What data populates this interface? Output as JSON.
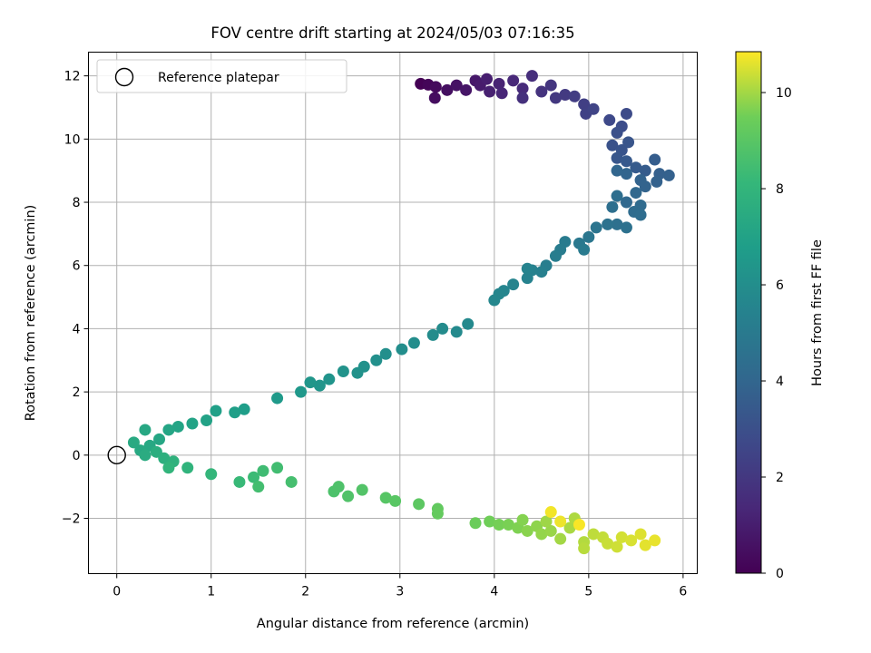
{
  "chart_data": {
    "type": "scatter",
    "title": "FOV centre drift starting at 2024/05/03 07:16:35",
    "xlabel": "Angular distance from reference (arcmin)",
    "ylabel": "Rotation from reference (arcmin)",
    "xlim": [
      -0.3,
      6.15
    ],
    "ylim": [
      -3.75,
      12.75
    ],
    "xticks": [
      0,
      1,
      2,
      3,
      4,
      5,
      6
    ],
    "yticks": [
      -2,
      0,
      2,
      4,
      6,
      8,
      10,
      12
    ],
    "xtick_labels": [
      "0",
      "1",
      "2",
      "3",
      "4",
      "5",
      "6"
    ],
    "ytick_labels": [
      "−2",
      "0",
      "2",
      "4",
      "6",
      "8",
      "10",
      "12"
    ],
    "grid": true,
    "legend": {
      "placement": "top-left",
      "entries": [
        "Reference platepar"
      ]
    },
    "reference_point": {
      "x": 0,
      "y": 0,
      "label": "Reference platepar"
    },
    "colorbar": {
      "label": "Hours from first FF file",
      "range": [
        0,
        10.85
      ],
      "ticks": [
        0,
        2,
        4,
        6,
        8,
        10
      ],
      "tick_labels": [
        "0",
        "2",
        "4",
        "6",
        "8",
        "10"
      ],
      "colormap": "viridis"
    },
    "points": [
      {
        "x": 3.22,
        "y": 11.75,
        "t": 0.0
      },
      {
        "x": 3.3,
        "y": 11.72,
        "t": 0.15
      },
      {
        "x": 3.38,
        "y": 11.65,
        "t": 0.3
      },
      {
        "x": 3.37,
        "y": 11.3,
        "t": 0.4
      },
      {
        "x": 3.5,
        "y": 11.55,
        "t": 0.5
      },
      {
        "x": 3.6,
        "y": 11.7,
        "t": 0.6
      },
      {
        "x": 3.7,
        "y": 11.55,
        "t": 0.7
      },
      {
        "x": 3.8,
        "y": 11.85,
        "t": 0.8
      },
      {
        "x": 3.85,
        "y": 11.7,
        "t": 0.9
      },
      {
        "x": 3.92,
        "y": 11.9,
        "t": 1.0
      },
      {
        "x": 3.95,
        "y": 11.5,
        "t": 1.1
      },
      {
        "x": 4.05,
        "y": 11.75,
        "t": 1.2
      },
      {
        "x": 4.08,
        "y": 11.45,
        "t": 1.3
      },
      {
        "x": 4.2,
        "y": 11.85,
        "t": 1.4
      },
      {
        "x": 4.3,
        "y": 11.6,
        "t": 1.5
      },
      {
        "x": 4.4,
        "y": 12.0,
        "t": 1.6
      },
      {
        "x": 4.3,
        "y": 11.3,
        "t": 1.7
      },
      {
        "x": 4.5,
        "y": 11.5,
        "t": 1.8
      },
      {
        "x": 4.6,
        "y": 11.7,
        "t": 1.9
      },
      {
        "x": 4.65,
        "y": 11.3,
        "t": 2.0
      },
      {
        "x": 4.75,
        "y": 11.4,
        "t": 2.1
      },
      {
        "x": 4.85,
        "y": 11.35,
        "t": 2.2
      },
      {
        "x": 4.95,
        "y": 11.1,
        "t": 2.3
      },
      {
        "x": 4.97,
        "y": 10.8,
        "t": 2.4
      },
      {
        "x": 5.05,
        "y": 10.95,
        "t": 2.5
      },
      {
        "x": 5.22,
        "y": 10.6,
        "t": 2.7
      },
      {
        "x": 5.4,
        "y": 10.8,
        "t": 2.8
      },
      {
        "x": 5.35,
        "y": 10.4,
        "t": 2.9
      },
      {
        "x": 5.3,
        "y": 10.2,
        "t": 3.0
      },
      {
        "x": 5.25,
        "y": 9.8,
        "t": 3.1
      },
      {
        "x": 5.35,
        "y": 9.65,
        "t": 3.2
      },
      {
        "x": 5.42,
        "y": 9.9,
        "t": 3.25
      },
      {
        "x": 5.3,
        "y": 9.4,
        "t": 3.3
      },
      {
        "x": 5.4,
        "y": 9.3,
        "t": 3.4
      },
      {
        "x": 5.5,
        "y": 9.1,
        "t": 3.5
      },
      {
        "x": 5.6,
        "y": 9.0,
        "t": 3.55
      },
      {
        "x": 5.7,
        "y": 9.35,
        "t": 3.6
      },
      {
        "x": 5.75,
        "y": 8.9,
        "t": 3.7
      },
      {
        "x": 5.85,
        "y": 8.85,
        "t": 3.75
      },
      {
        "x": 5.72,
        "y": 8.65,
        "t": 3.8
      },
      {
        "x": 5.55,
        "y": 8.7,
        "t": 3.85
      },
      {
        "x": 5.6,
        "y": 8.5,
        "t": 3.9
      },
      {
        "x": 5.4,
        "y": 8.9,
        "t": 3.95
      },
      {
        "x": 5.3,
        "y": 9.0,
        "t": 4.0
      },
      {
        "x": 5.5,
        "y": 8.3,
        "t": 4.05
      },
      {
        "x": 5.4,
        "y": 8.0,
        "t": 4.1
      },
      {
        "x": 5.55,
        "y": 7.9,
        "t": 4.2
      },
      {
        "x": 5.48,
        "y": 7.7,
        "t": 4.3
      },
      {
        "x": 5.55,
        "y": 7.6,
        "t": 4.35
      },
      {
        "x": 5.3,
        "y": 8.2,
        "t": 4.4
      },
      {
        "x": 5.25,
        "y": 7.85,
        "t": 4.45
      },
      {
        "x": 5.3,
        "y": 7.3,
        "t": 4.5
      },
      {
        "x": 5.4,
        "y": 7.2,
        "t": 4.55
      },
      {
        "x": 5.2,
        "y": 7.3,
        "t": 4.6
      },
      {
        "x": 5.08,
        "y": 7.2,
        "t": 4.7
      },
      {
        "x": 5.0,
        "y": 6.9,
        "t": 4.8
      },
      {
        "x": 4.9,
        "y": 6.7,
        "t": 4.9
      },
      {
        "x": 4.95,
        "y": 6.5,
        "t": 5.0
      },
      {
        "x": 4.75,
        "y": 6.75,
        "t": 5.05
      },
      {
        "x": 4.7,
        "y": 6.5,
        "t": 5.1
      },
      {
        "x": 4.65,
        "y": 6.3,
        "t": 5.15
      },
      {
        "x": 4.55,
        "y": 6.0,
        "t": 5.2
      },
      {
        "x": 4.5,
        "y": 5.8,
        "t": 5.3
      },
      {
        "x": 4.4,
        "y": 5.85,
        "t": 5.35
      },
      {
        "x": 4.35,
        "y": 5.6,
        "t": 5.4
      },
      {
        "x": 4.35,
        "y": 5.9,
        "t": 5.45
      },
      {
        "x": 4.2,
        "y": 5.4,
        "t": 5.5
      },
      {
        "x": 4.1,
        "y": 5.2,
        "t": 5.55
      },
      {
        "x": 4.05,
        "y": 5.1,
        "t": 5.6
      },
      {
        "x": 4.0,
        "y": 4.9,
        "t": 5.65
      },
      {
        "x": 3.72,
        "y": 4.15,
        "t": 5.75
      },
      {
        "x": 3.6,
        "y": 3.9,
        "t": 5.8
      },
      {
        "x": 3.45,
        "y": 4.0,
        "t": 5.85
      },
      {
        "x": 3.35,
        "y": 3.8,
        "t": 5.9
      },
      {
        "x": 3.15,
        "y": 3.55,
        "t": 5.95
      },
      {
        "x": 3.02,
        "y": 3.35,
        "t": 6.0
      },
      {
        "x": 2.85,
        "y": 3.2,
        "t": 6.05
      },
      {
        "x": 2.75,
        "y": 3.0,
        "t": 6.1
      },
      {
        "x": 2.62,
        "y": 2.8,
        "t": 6.15
      },
      {
        "x": 2.55,
        "y": 2.6,
        "t": 6.2
      },
      {
        "x": 2.4,
        "y": 2.65,
        "t": 6.25
      },
      {
        "x": 2.25,
        "y": 2.4,
        "t": 6.3
      },
      {
        "x": 2.15,
        "y": 2.2,
        "t": 6.35
      },
      {
        "x": 2.05,
        "y": 2.3,
        "t": 6.4
      },
      {
        "x": 1.95,
        "y": 2.0,
        "t": 6.5
      },
      {
        "x": 1.7,
        "y": 1.8,
        "t": 6.6
      },
      {
        "x": 1.35,
        "y": 1.45,
        "t": 6.8
      },
      {
        "x": 1.25,
        "y": 1.35,
        "t": 6.85
      },
      {
        "x": 1.05,
        "y": 1.4,
        "t": 6.9
      },
      {
        "x": 0.95,
        "y": 1.1,
        "t": 7.0
      },
      {
        "x": 0.8,
        "y": 1.0,
        "t": 7.05
      },
      {
        "x": 0.65,
        "y": 0.9,
        "t": 7.1
      },
      {
        "x": 0.55,
        "y": 0.8,
        "t": 7.15
      },
      {
        "x": 0.45,
        "y": 0.5,
        "t": 7.2
      },
      {
        "x": 0.3,
        "y": 0.8,
        "t": 7.25
      },
      {
        "x": 0.35,
        "y": 0.3,
        "t": 7.3
      },
      {
        "x": 0.25,
        "y": 0.15,
        "t": 7.35
      },
      {
        "x": 0.18,
        "y": 0.4,
        "t": 7.4
      },
      {
        "x": 0.3,
        "y": 0.0,
        "t": 7.5
      },
      {
        "x": 0.42,
        "y": 0.1,
        "t": 7.6
      },
      {
        "x": 0.5,
        "y": -0.1,
        "t": 7.7
      },
      {
        "x": 0.6,
        "y": -0.2,
        "t": 7.8
      },
      {
        "x": 0.75,
        "y": -0.4,
        "t": 7.9
      },
      {
        "x": 0.55,
        "y": -0.4,
        "t": 7.95
      },
      {
        "x": 1.0,
        "y": -0.6,
        "t": 8.05
      },
      {
        "x": 1.3,
        "y": -0.85,
        "t": 8.2
      },
      {
        "x": 1.45,
        "y": -0.7,
        "t": 8.3
      },
      {
        "x": 1.55,
        "y": -0.5,
        "t": 8.4
      },
      {
        "x": 1.7,
        "y": -0.4,
        "t": 8.45
      },
      {
        "x": 1.5,
        "y": -1.0,
        "t": 8.5
      },
      {
        "x": 1.85,
        "y": -0.85,
        "t": 8.55
      },
      {
        "x": 2.3,
        "y": -1.15,
        "t": 8.7
      },
      {
        "x": 2.35,
        "y": -1.0,
        "t": 8.75
      },
      {
        "x": 2.45,
        "y": -1.3,
        "t": 8.8
      },
      {
        "x": 2.6,
        "y": -1.1,
        "t": 8.85
      },
      {
        "x": 2.85,
        "y": -1.35,
        "t": 8.95
      },
      {
        "x": 2.95,
        "y": -1.45,
        "t": 9.0
      },
      {
        "x": 3.2,
        "y": -1.55,
        "t": 9.1
      },
      {
        "x": 3.4,
        "y": -1.7,
        "t": 9.2
      },
      {
        "x": 3.4,
        "y": -1.85,
        "t": 9.25
      },
      {
        "x": 3.8,
        "y": -2.15,
        "t": 9.4
      },
      {
        "x": 3.95,
        "y": -2.1,
        "t": 9.5
      },
      {
        "x": 4.05,
        "y": -2.2,
        "t": 9.55
      },
      {
        "x": 4.15,
        "y": -2.2,
        "t": 9.6
      },
      {
        "x": 4.25,
        "y": -2.3,
        "t": 9.65
      },
      {
        "x": 4.3,
        "y": -2.05,
        "t": 9.7
      },
      {
        "x": 4.35,
        "y": -2.4,
        "t": 9.75
      },
      {
        "x": 4.45,
        "y": -2.25,
        "t": 9.8
      },
      {
        "x": 4.5,
        "y": -2.5,
        "t": 9.85
      },
      {
        "x": 4.6,
        "y": -2.4,
        "t": 9.9
      },
      {
        "x": 4.55,
        "y": -2.1,
        "t": 9.95
      },
      {
        "x": 4.7,
        "y": -2.65,
        "t": 10.0
      },
      {
        "x": 4.8,
        "y": -2.3,
        "t": 10.05
      },
      {
        "x": 4.85,
        "y": -2.0,
        "t": 10.1
      },
      {
        "x": 4.95,
        "y": -2.75,
        "t": 10.15
      },
      {
        "x": 4.95,
        "y": -2.95,
        "t": 10.2
      },
      {
        "x": 5.05,
        "y": -2.5,
        "t": 10.25
      },
      {
        "x": 5.15,
        "y": -2.6,
        "t": 10.3
      },
      {
        "x": 5.2,
        "y": -2.8,
        "t": 10.35
      },
      {
        "x": 5.3,
        "y": -2.9,
        "t": 10.4
      },
      {
        "x": 5.35,
        "y": -2.6,
        "t": 10.45
      },
      {
        "x": 5.45,
        "y": -2.7,
        "t": 10.5
      },
      {
        "x": 5.55,
        "y": -2.5,
        "t": 10.55
      },
      {
        "x": 5.6,
        "y": -2.85,
        "t": 10.6
      },
      {
        "x": 5.7,
        "y": -2.7,
        "t": 10.65
      },
      {
        "x": 4.7,
        "y": -2.1,
        "t": 10.7
      },
      {
        "x": 4.6,
        "y": -1.8,
        "t": 10.75
      },
      {
        "x": 4.9,
        "y": -2.2,
        "t": 10.8
      }
    ]
  }
}
